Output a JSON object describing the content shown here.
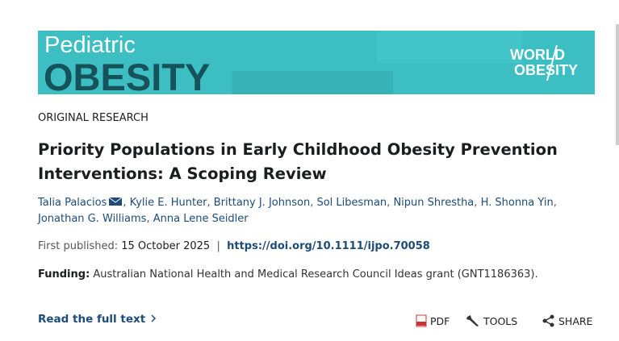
{
  "header": {
    "journal_line1": "Pediatric",
    "journal_line2": "OBESITY",
    "logo_line1": "WORLD",
    "logo_line2": "OBESITY"
  },
  "article": {
    "section": "ORIGINAL RESEARCH",
    "title": "Priority Populations in Early Childhood Obesity Prevention Interventions: A Scoping Review",
    "authors": [
      "Talia Palacios",
      "Kylie E. Hunter",
      "Brittany J. Johnson",
      "Sol Libesman",
      "Nipun Shrestha",
      "H. Shonna Yin",
      "Jonathan G. Williams",
      "Anna Lene Seidler"
    ],
    "author_separator": ",",
    "published_label": "First published:",
    "published_date": "15 October 2025",
    "published_separator": "|",
    "doi": "https://doi.org/10.1111/ijpo.70058",
    "funding_label": "Funding:",
    "funding_text": "Australian National Health and Medical Research Council Ideas grant (GNT1186363)."
  },
  "actions": {
    "read_full_text": "Read the full text",
    "pdf": "PDF",
    "tools": "TOOLS",
    "share": "SHARE"
  }
}
